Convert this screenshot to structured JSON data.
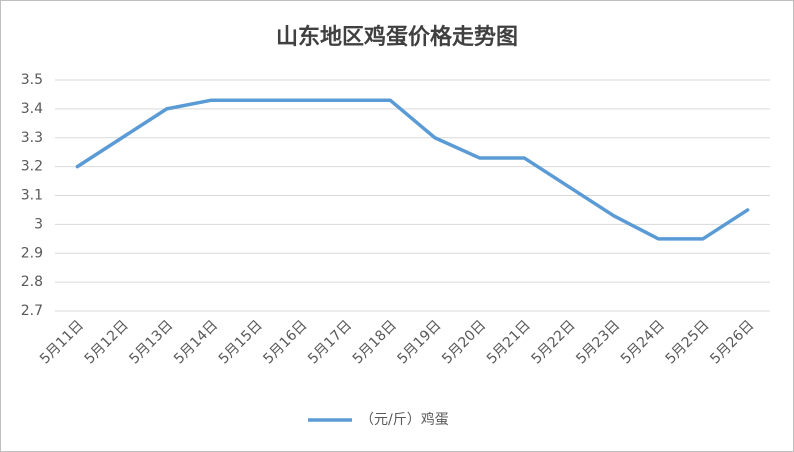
{
  "chart_data": {
    "type": "line",
    "title": "山东地区鸡蛋价格走势图",
    "categories": [
      "5月11日",
      "5月12日",
      "5月13日",
      "5月14日",
      "5月15日",
      "5月16日",
      "5月17日",
      "5月18日",
      "5月19日",
      "5月20日",
      "5月21日",
      "5月22日",
      "5月23日",
      "5月24日",
      "5月25日",
      "5月26日"
    ],
    "series": [
      {
        "name": "（元/斤）鸡蛋",
        "color": "#5b9bd5",
        "values": [
          3.2,
          3.3,
          3.4,
          3.43,
          3.43,
          3.43,
          3.43,
          3.43,
          3.3,
          3.23,
          3.23,
          3.13,
          3.03,
          2.95,
          2.95,
          3.05
        ]
      }
    ],
    "ylim": [
      2.7,
      3.5
    ],
    "yticks": [
      2.7,
      2.8,
      2.9,
      3,
      3.1,
      3.2,
      3.3,
      3.4,
      3.5
    ],
    "grid": true,
    "legend": "bottom"
  }
}
